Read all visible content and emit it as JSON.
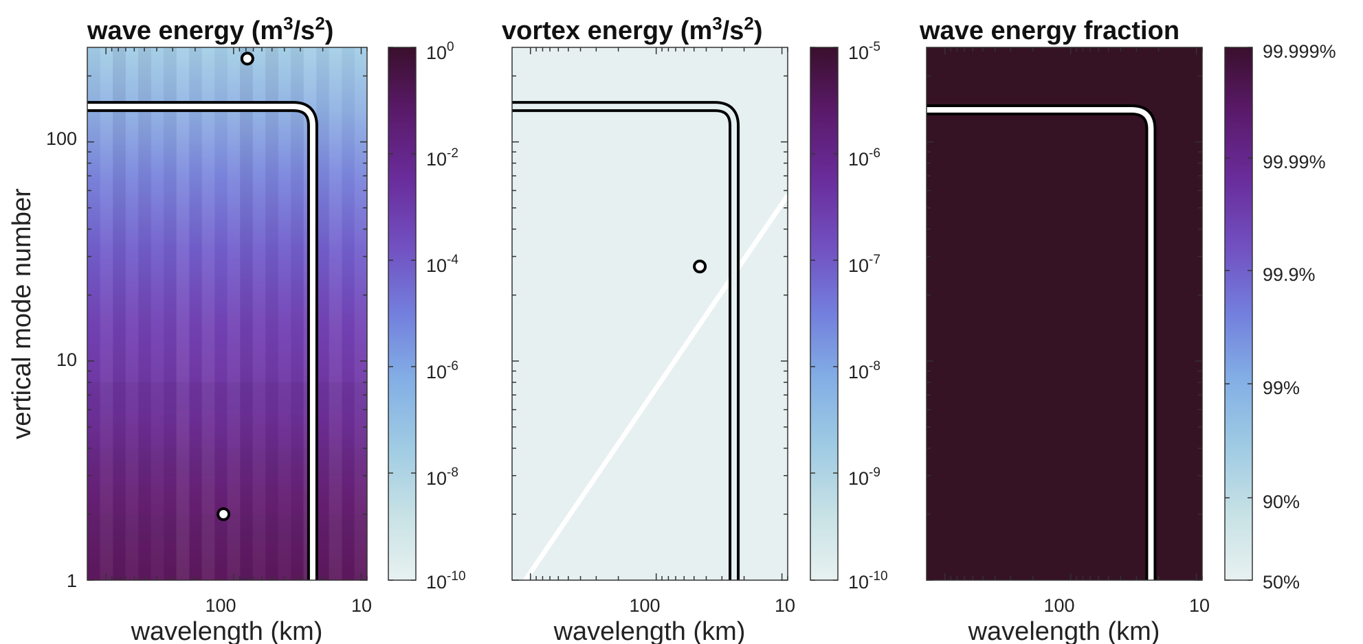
{
  "chart_data": [
    {
      "type": "heatmap",
      "title": "wave energy (m",
      "title_sup1": "3",
      "title_mid": "/s",
      "title_sup2": "2",
      "title_end": ")",
      "xlabel": "wavelength (km)",
      "ylabel": "vertical mode number",
      "x_axis": "wavelength, log scale, reversed",
      "xlim": [
        1400,
        9
      ],
      "ylim": [
        1,
        270
      ],
      "x_ticks": [
        100,
        10
      ],
      "y_ticks": [
        1,
        10,
        100
      ],
      "x_tick_labels": [
        "100",
        "10"
      ],
      "y_tick_labels": [
        "1",
        "10",
        "100"
      ],
      "colorbar": {
        "scale": "log",
        "range": [
          1e-10,
          1
        ],
        "tick_bases": [
          "10",
          "10",
          "10",
          "10",
          "10",
          "10"
        ],
        "tick_exponents": [
          "0",
          "-2",
          "-4",
          "-6",
          "-8",
          "-10"
        ],
        "tick_values": [
          1,
          0.01,
          0.0001,
          1e-06,
          1e-08,
          1e-10
        ]
      },
      "markers": [
        {
          "wavelength_km": 78,
          "mode": 240
        },
        {
          "wavelength_km": 120,
          "mode": 2
        }
      ],
      "contours": [
        {
          "color": "black-white-black",
          "mode_at_left": 145,
          "wavelength_at_bottom": 24
        }
      ],
      "diagonal_line": null
    },
    {
      "type": "heatmap",
      "title": "vortex energy (m",
      "title_sup1": "3",
      "title_mid": "/s",
      "title_sup2": "2",
      "title_end": ")",
      "xlabel": "wavelength (km)",
      "ylabel": "",
      "x_axis": "wavelength, log scale, reversed",
      "xlim": [
        1400,
        9
      ],
      "ylim": [
        1,
        270
      ],
      "x_ticks": [
        100,
        10
      ],
      "x_tick_labels": [
        "100",
        "10"
      ],
      "colorbar": {
        "scale": "log",
        "range": [
          1e-10,
          1e-05
        ],
        "tick_bases": [
          "10",
          "10",
          "10",
          "10",
          "10",
          "10"
        ],
        "tick_exponents": [
          "-5",
          "-6",
          "-7",
          "-8",
          "-9",
          "-10"
        ],
        "tick_values": [
          1e-05,
          1e-06,
          1e-07,
          1e-08,
          1e-09,
          1e-10
        ]
      },
      "markers": [
        {
          "wavelength_km": 45,
          "mode": 27
        }
      ],
      "contours": [
        {
          "color": "black-white-black",
          "mode_at_left": 145,
          "wavelength_at_bottom": 24
        }
      ],
      "diagonal_line": {
        "from": {
          "wavelength_km": 1100,
          "mode": 1
        },
        "to": {
          "wavelength_km": 9,
          "mode": 57
        }
      }
    },
    {
      "type": "heatmap",
      "title": "wave energy fraction",
      "xlabel": "wavelength (km)",
      "ylabel": "",
      "x_axis": "wavelength, log scale, reversed",
      "xlim": [
        1400,
        9
      ],
      "ylim": [
        1,
        270
      ],
      "x_ticks": [
        100,
        10
      ],
      "x_tick_labels": [
        "100",
        "10"
      ],
      "colorbar": {
        "scale": "log",
        "range": [
          "50%",
          "99.999%"
        ],
        "tick_labels": [
          "99.999%",
          "99.99%",
          "99.9%",
          "99%",
          "90%",
          "50%"
        ]
      },
      "markers": [],
      "contours": [
        {
          "color": "black-white-black",
          "mode_at_left": 140,
          "wavelength_at_bottom": 23
        }
      ],
      "diagonal_line": null
    }
  ],
  "colors": {
    "colormap": [
      "#e8f1f1",
      "#c8e2e5",
      "#9fcbe4",
      "#82aee5",
      "#737fdd",
      "#7252c2",
      "#6a2d9c",
      "#5a1a6a",
      "#3a0f2c"
    ],
    "background_fraction": "#361225",
    "background_vortex": "#e6f0f0",
    "contour_outer": "#000000",
    "contour_inner": "#ffffff"
  }
}
